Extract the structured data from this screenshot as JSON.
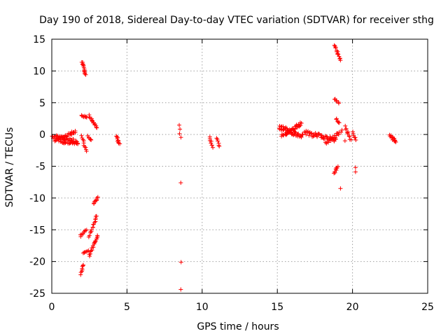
{
  "chart_data": {
    "type": "scatter",
    "title": "Day 190 of 2018, Sidereal Day-to-day VTEC variation (SDTVAR) for receiver sthg",
    "xlabel": "GPS time / hours",
    "ylabel": "SDTVAR / TECUs",
    "xlim": [
      0,
      25
    ],
    "ylim": [
      -25,
      15
    ],
    "xticks": [
      0,
      5,
      10,
      15,
      20,
      25
    ],
    "yticks": [
      -25,
      -20,
      -15,
      -10,
      -5,
      0,
      5,
      10,
      15
    ],
    "xtick_labels": [
      "0",
      "5",
      "10",
      "15",
      "20",
      "25"
    ],
    "ytick_labels": [
      "-25",
      "-20",
      "-15",
      "-10",
      "-5",
      "0",
      "5",
      "10",
      "15"
    ],
    "grid": true,
    "marker": "+",
    "series_color": "#ff0000",
    "segments": [
      {
        "x0": 0.0,
        "y0": -0.3,
        "x1": 1.7,
        "y1": -1.1,
        "n": 40,
        "spread": 0.6
      },
      {
        "x0": 0.2,
        "y0": -0.8,
        "x1": 1.6,
        "y1": 0.4,
        "n": 30,
        "spread": 0.5
      },
      {
        "x0": 0.5,
        "y0": -1.2,
        "x1": 1.7,
        "y1": -1.4,
        "n": 20,
        "spread": 0.3
      },
      {
        "x0": 2.0,
        "y0": 11.5,
        "x1": 2.25,
        "y1": 9.3,
        "n": 14,
        "spread": 0.3
      },
      {
        "x0": 1.95,
        "y0": 3.0,
        "x1": 2.3,
        "y1": 2.6,
        "n": 8,
        "spread": 0.3
      },
      {
        "x0": 2.5,
        "y0": 3.0,
        "x1": 3.0,
        "y1": 1.0,
        "n": 14,
        "spread": 0.3
      },
      {
        "x0": 2.0,
        "y0": -0.2,
        "x1": 2.3,
        "y1": -2.7,
        "n": 10,
        "spread": 0.3
      },
      {
        "x0": 2.4,
        "y0": -0.3,
        "x1": 2.6,
        "y1": -0.9,
        "n": 6,
        "spread": 0.2
      },
      {
        "x0": 2.8,
        "y0": -10.9,
        "x1": 3.05,
        "y1": -9.9,
        "n": 8,
        "spread": 0.2
      },
      {
        "x0": 2.5,
        "y0": -16.0,
        "x1": 3.0,
        "y1": -12.8,
        "n": 16,
        "spread": 0.3
      },
      {
        "x0": 2.5,
        "y0": -19.2,
        "x1": 3.05,
        "y1": -15.8,
        "n": 18,
        "spread": 0.3
      },
      {
        "x0": 1.9,
        "y0": -16.0,
        "x1": 2.3,
        "y1": -15.0,
        "n": 10,
        "spread": 0.3
      },
      {
        "x0": 2.1,
        "y0": -18.7,
        "x1": 2.4,
        "y1": -18.3,
        "n": 6,
        "spread": 0.2
      },
      {
        "x0": 1.95,
        "y0": -22.0,
        "x1": 2.1,
        "y1": -20.4,
        "n": 8,
        "spread": 0.3
      },
      {
        "x0": 4.3,
        "y0": -0.3,
        "x1": 4.5,
        "y1": -1.5,
        "n": 10,
        "spread": 0.3
      },
      {
        "x0": 8.5,
        "y0": 1.4,
        "x1": 8.55,
        "y1": -0.5,
        "n": 4,
        "spread": 0.2
      },
      {
        "x0": 10.5,
        "y0": -0.5,
        "x1": 10.7,
        "y1": -2.0,
        "n": 8,
        "spread": 0.3
      },
      {
        "x0": 11.0,
        "y0": -0.5,
        "x1": 11.15,
        "y1": -1.8,
        "n": 6,
        "spread": 0.3
      },
      {
        "x0": 15.1,
        "y0": 1.2,
        "x1": 16.7,
        "y1": -0.4,
        "n": 45,
        "spread": 0.7
      },
      {
        "x0": 15.3,
        "y0": -0.3,
        "x1": 16.6,
        "y1": 1.8,
        "n": 35,
        "spread": 0.6
      },
      {
        "x0": 16.8,
        "y0": 0.3,
        "x1": 18.9,
        "y1": -0.9,
        "n": 45,
        "spread": 0.7
      },
      {
        "x0": 18.2,
        "y0": -1.3,
        "x1": 19.2,
        "y1": 0.3,
        "n": 18,
        "spread": 0.5
      },
      {
        "x0": 18.8,
        "y0": 14.0,
        "x1": 19.2,
        "y1": 11.8,
        "n": 14,
        "spread": 0.3
      },
      {
        "x0": 18.8,
        "y0": 5.6,
        "x1": 19.1,
        "y1": 5.0,
        "n": 6,
        "spread": 0.2
      },
      {
        "x0": 18.9,
        "y0": 2.5,
        "x1": 19.1,
        "y1": 1.8,
        "n": 6,
        "spread": 0.2
      },
      {
        "x0": 18.8,
        "y0": -6.2,
        "x1": 19.0,
        "y1": -5.0,
        "n": 8,
        "spread": 0.3
      },
      {
        "x0": 19.5,
        "y0": 1.2,
        "x1": 19.9,
        "y1": -1.0,
        "n": 10,
        "spread": 0.4
      },
      {
        "x0": 20.0,
        "y0": 0.3,
        "x1": 20.2,
        "y1": -0.8,
        "n": 6,
        "spread": 0.3
      },
      {
        "x0": 22.5,
        "y0": -0.2,
        "x1": 22.9,
        "y1": -1.2,
        "n": 14,
        "spread": 0.5
      }
    ],
    "isolated_points": [
      {
        "x": 8.58,
        "y": -7.6
      },
      {
        "x": 8.6,
        "y": -20.1
      },
      {
        "x": 8.58,
        "y": -24.4
      },
      {
        "x": 19.2,
        "y": -8.5
      },
      {
        "x": 20.2,
        "y": -5.2
      },
      {
        "x": 20.2,
        "y": -5.9
      },
      {
        "x": 19.5,
        "y": -1.0
      },
      {
        "x": 19.3,
        "y": 0.7
      }
    ]
  }
}
